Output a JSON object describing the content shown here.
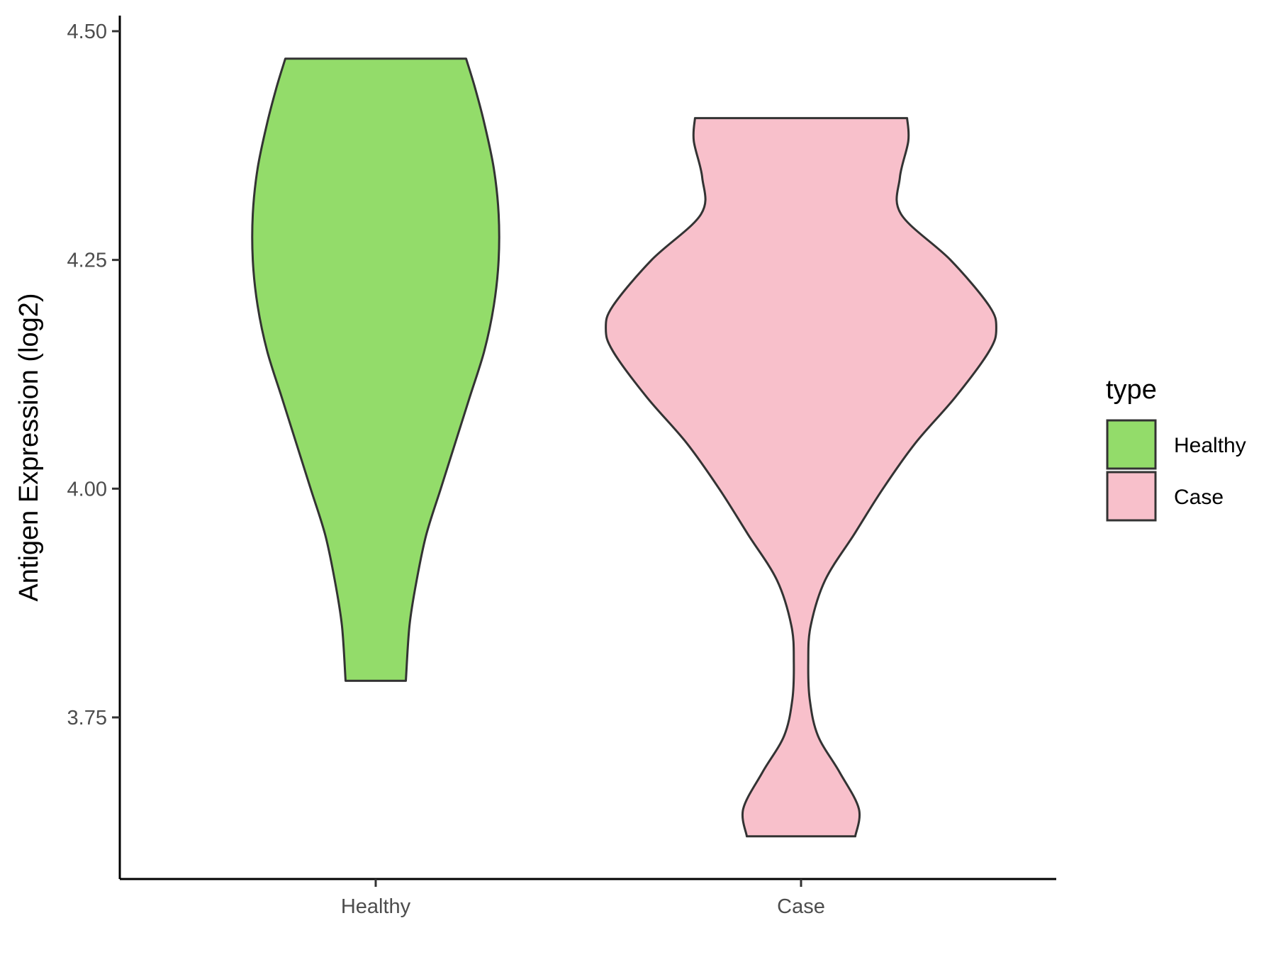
{
  "chart_data": {
    "type": "violin",
    "title": "",
    "xlabel": "",
    "ylabel": "Antigen Expression (log2)",
    "ylim": [
      3.59,
      4.52
    ],
    "yticks": [
      {
        "value": 3.75,
        "label": "3.75"
      },
      {
        "value": 4.0,
        "label": "4.00"
      },
      {
        "value": 4.25,
        "label": "4.25"
      },
      {
        "value": 4.5,
        "label": "4.50"
      }
    ],
    "categories": [
      "Healthy",
      "Case"
    ],
    "grid": false,
    "legend": {
      "title": "type",
      "position": "right",
      "entries": [
        {
          "label": "Healthy",
          "color": "#93dc6a"
        },
        {
          "label": "Case",
          "color": "#f8c0cb"
        }
      ]
    },
    "series": [
      {
        "category": "Healthy",
        "color": "#93dc6a",
        "min": 3.79,
        "max": 4.47,
        "density_profile": [
          [
            3.79,
            0.125
          ],
          [
            3.85,
            0.14
          ],
          [
            3.9,
            0.17
          ],
          [
            3.95,
            0.21
          ],
          [
            4.0,
            0.27
          ],
          [
            4.05,
            0.33
          ],
          [
            4.1,
            0.39
          ],
          [
            4.15,
            0.45
          ],
          [
            4.2,
            0.49
          ],
          [
            4.25,
            0.51
          ],
          [
            4.3,
            0.51
          ],
          [
            4.35,
            0.49
          ],
          [
            4.4,
            0.45
          ],
          [
            4.44,
            0.41
          ],
          [
            4.47,
            0.375
          ]
        ]
      },
      {
        "category": "Case",
        "color": "#f8c0cb",
        "min": 3.62,
        "max": 4.405,
        "density_profile": [
          [
            3.62,
            0.225
          ],
          [
            3.65,
            0.24
          ],
          [
            3.69,
            0.16
          ],
          [
            3.73,
            0.07
          ],
          [
            3.77,
            0.036
          ],
          [
            3.81,
            0.03
          ],
          [
            3.85,
            0.04
          ],
          [
            3.9,
            0.1
          ],
          [
            3.95,
            0.22
          ],
          [
            4.0,
            0.34
          ],
          [
            4.05,
            0.475
          ],
          [
            4.1,
            0.64
          ],
          [
            4.15,
            0.78
          ],
          [
            4.175,
            0.81
          ],
          [
            4.2,
            0.78
          ],
          [
            4.25,
            0.62
          ],
          [
            4.3,
            0.415
          ],
          [
            4.34,
            0.41
          ],
          [
            4.38,
            0.445
          ],
          [
            4.405,
            0.44
          ]
        ]
      }
    ]
  }
}
